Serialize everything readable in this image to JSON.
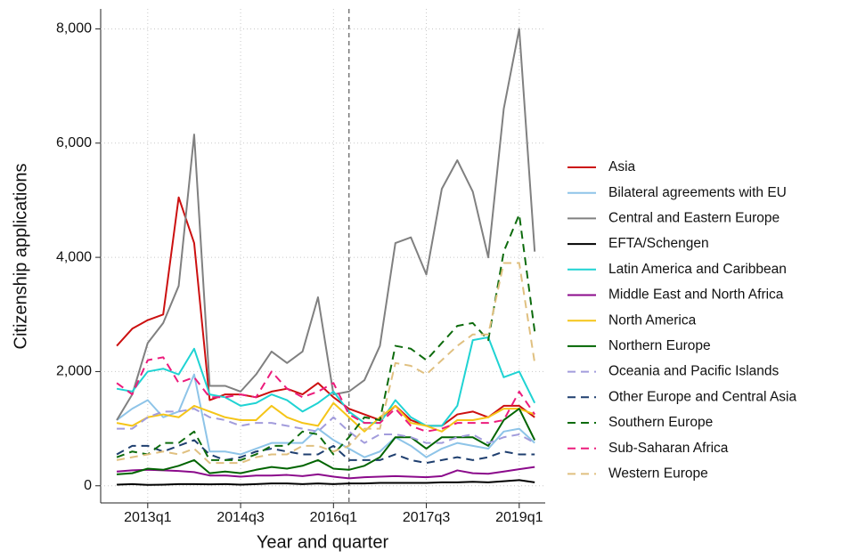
{
  "chart_data": {
    "type": "line",
    "x_label": "Year and quarter",
    "y_label": "Citizenship applications",
    "x": [
      2012.5,
      2012.75,
      2013,
      2013.25,
      2013.5,
      2013.75,
      2014,
      2014.25,
      2014.5,
      2014.75,
      2015,
      2015.25,
      2015.5,
      2015.75,
      2016,
      2016.25,
      2016.5,
      2016.75,
      2017,
      2017.25,
      2017.5,
      2017.75,
      2018,
      2018.25,
      2018.5,
      2018.75,
      2019,
      2019.25
    ],
    "xlim": [
      2012.24,
      2019.42
    ],
    "xticks": [
      {
        "value": 2013,
        "label": "2013q1"
      },
      {
        "value": 2014.5,
        "label": "2014q3"
      },
      {
        "value": 2016,
        "label": "2016q1"
      },
      {
        "value": 2017.5,
        "label": "2017q3"
      },
      {
        "value": 2019,
        "label": "2019q1"
      }
    ],
    "ylim": [
      -300,
      8350
    ],
    "yticks": [
      0,
      {
        "value": 2000,
        "label": "2,000"
      },
      {
        "value": 4000,
        "label": "4,000"
      },
      {
        "value": 6000,
        "label": "6,000"
      },
      {
        "value": 8000,
        "label": "8,000"
      }
    ],
    "grid": true,
    "vline": 2016.25,
    "legend": "right",
    "series": [
      {
        "name": "Asia",
        "color": "#cc1010",
        "dash": false,
        "values": [
          2450,
          2750,
          2900,
          3000,
          5050,
          4250,
          1500,
          1600,
          1600,
          1550,
          1650,
          1700,
          1600,
          1800,
          1550,
          1350,
          1250,
          1150,
          1400,
          1150,
          1050,
          1050,
          1250,
          1300,
          1200,
          1400,
          1400,
          1200
        ]
      },
      {
        "name": "Bilateral agreements with EU",
        "color": "#8ec4e8",
        "dash": false,
        "values": [
          1150,
          1350,
          1500,
          1200,
          1300,
          1950,
          600,
          600,
          550,
          650,
          750,
          750,
          750,
          1000,
          800,
          650,
          500,
          600,
          850,
          700,
          500,
          650,
          750,
          700,
          650,
          950,
          1000,
          750
        ]
      },
      {
        "name": "Central and Eastern Europe",
        "color": "#808080",
        "dash": false,
        "values": [
          1150,
          1600,
          2500,
          2850,
          3500,
          6150,
          1750,
          1750,
          1650,
          1950,
          2350,
          2150,
          2350,
          3300,
          1600,
          1650,
          1850,
          2450,
          4250,
          4350,
          3700,
          5200,
          5700,
          5150,
          4000,
          6600,
          8000,
          4100
        ]
      },
      {
        "name": "EFTA/Schengen",
        "color": "#000000",
        "dash": false,
        "values": [
          20,
          30,
          15,
          20,
          30,
          30,
          25,
          30,
          20,
          30,
          40,
          40,
          30,
          40,
          30,
          40,
          40,
          50,
          50,
          50,
          50,
          60,
          60,
          70,
          60,
          80,
          100,
          60
        ]
      },
      {
        "name": "Latin America and Caribbean",
        "color": "#1fd3d3",
        "dash": false,
        "values": [
          1700,
          1650,
          2000,
          2050,
          1950,
          2400,
          1600,
          1550,
          1400,
          1450,
          1600,
          1500,
          1300,
          1450,
          1650,
          1300,
          1100,
          1100,
          1500,
          1200,
          1050,
          1050,
          1400,
          2550,
          2600,
          1900,
          2000,
          1450
        ]
      },
      {
        "name": "Middle East and North Africa",
        "color": "#8b0a8b",
        "dash": false,
        "values": [
          250,
          270,
          280,
          270,
          260,
          240,
          180,
          180,
          160,
          180,
          180,
          190,
          170,
          200,
          160,
          130,
          150,
          160,
          170,
          160,
          150,
          170,
          270,
          220,
          210,
          250,
          290,
          330
        ]
      },
      {
        "name": "North America",
        "color": "#f5c518",
        "dash": false,
        "values": [
          1100,
          1050,
          1200,
          1250,
          1200,
          1400,
          1300,
          1200,
          1150,
          1150,
          1400,
          1200,
          1100,
          1050,
          1450,
          1200,
          950,
          1200,
          1400,
          1100,
          1050,
          950,
          1150,
          1150,
          1200,
          1350,
          1350,
          1250
        ]
      },
      {
        "name": "Northern Europe",
        "color": "#006400",
        "dash": false,
        "values": [
          200,
          220,
          300,
          280,
          350,
          450,
          220,
          250,
          220,
          280,
          330,
          300,
          350,
          450,
          300,
          280,
          350,
          500,
          850,
          850,
          650,
          850,
          850,
          850,
          700,
          1150,
          1350,
          800
        ]
      },
      {
        "name": "Oceania and Pacific Islands",
        "color": "#a29cdc",
        "dash": true,
        "values": [
          1000,
          1000,
          1200,
          1300,
          1300,
          1350,
          1200,
          1150,
          1050,
          1100,
          1100,
          1050,
          1000,
          950,
          1200,
          950,
          750,
          900,
          900,
          850,
          750,
          750,
          850,
          900,
          750,
          850,
          900,
          750
        ]
      },
      {
        "name": "Other Europe and Central Asia",
        "color": "#1f3f6f",
        "dash": true,
        "values": [
          550,
          700,
          700,
          600,
          700,
          800,
          550,
          450,
          500,
          600,
          650,
          600,
          550,
          550,
          700,
          450,
          450,
          450,
          550,
          450,
          400,
          450,
          500,
          450,
          500,
          600,
          550,
          550
        ]
      },
      {
        "name": "Southern Europe",
        "color": "#0d6b0d",
        "dash": true,
        "values": [
          500,
          600,
          550,
          750,
          750,
          950,
          450,
          450,
          450,
          550,
          700,
          700,
          950,
          900,
          550,
          850,
          1200,
          1150,
          2450,
          2400,
          2200,
          2500,
          2800,
          2850,
          2550,
          4100,
          4750,
          2700
        ]
      },
      {
        "name": "Sub-Saharan Africa",
        "color": "#ec1c7c",
        "dash": true,
        "values": [
          1800,
          1600,
          2200,
          2250,
          1800,
          1900,
          1550,
          1550,
          1600,
          1550,
          2000,
          1700,
          1550,
          1650,
          1800,
          1250,
          1100,
          1100,
          1350,
          1050,
          950,
          1000,
          1100,
          1100,
          1100,
          1150,
          1650,
          1250
        ]
      },
      {
        "name": "Western Europe",
        "color": "#e0c080",
        "dash": true,
        "values": [
          450,
          500,
          550,
          600,
          550,
          650,
          400,
          400,
          400,
          500,
          550,
          550,
          700,
          700,
          600,
          700,
          1000,
          1000,
          2150,
          2100,
          1950,
          2200,
          2450,
          2650,
          2650,
          3900,
          3900,
          2150
        ]
      }
    ]
  }
}
